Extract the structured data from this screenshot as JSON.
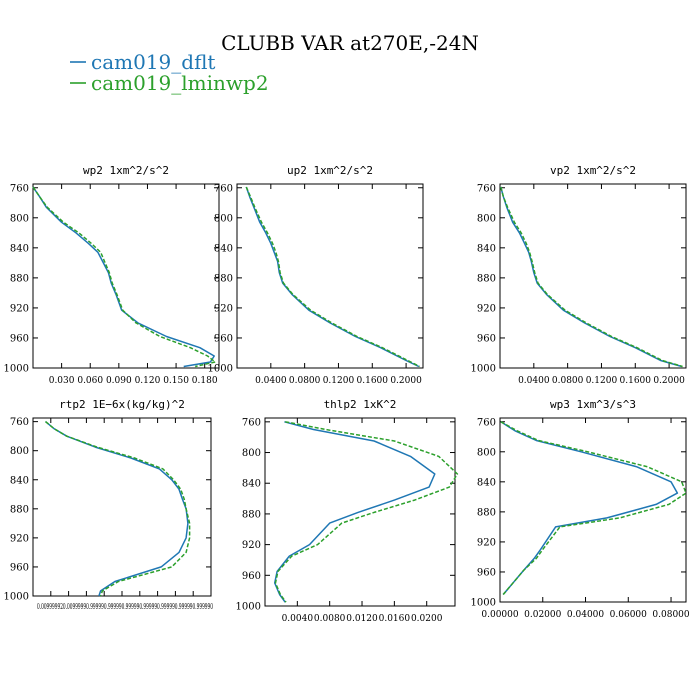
{
  "figure": {
    "title": "CLUBB VAR at270E,-24N",
    "legend": [
      {
        "label": "cam019_dflt",
        "color": "#1f77b4",
        "dash": "solid"
      },
      {
        "label": "cam019_lminwp2",
        "color": "#2ca02c",
        "dash": "dashed"
      }
    ]
  },
  "chart_data": [
    {
      "type": "line",
      "title": "wp2  1xm^2/s^2",
      "ylim": [
        1000,
        755
      ],
      "yticks": [
        760,
        800,
        840,
        880,
        920,
        960,
        1000
      ],
      "xlim": [
        0.0,
        0.195
      ],
      "xticks": [
        0.03,
        0.06,
        0.09,
        0.12,
        0.15,
        0.18
      ],
      "xticklabels": [
        "0.030",
        "0.060",
        "0.090",
        "0.120",
        "0.150",
        "0.180"
      ],
      "series": [
        {
          "name": "cam019_dflt",
          "x": [
            0.0,
            0.007,
            0.014,
            0.03,
            0.045,
            0.058,
            0.068,
            0.073,
            0.079,
            0.082,
            0.087,
            0.093,
            0.11,
            0.14,
            0.175,
            0.19,
            0.186,
            0.158
          ],
          "y": [
            759,
            772,
            786,
            806,
            820,
            834,
            846,
            858,
            873,
            887,
            902,
            923,
            940,
            958,
            973,
            984,
            992,
            998
          ]
        },
        {
          "name": "cam019_lminwp2",
          "x": [
            0.0,
            0.007,
            0.015,
            0.032,
            0.048,
            0.061,
            0.071,
            0.075,
            0.08,
            0.083,
            0.088,
            0.094,
            0.108,
            0.133,
            0.165,
            0.183,
            0.191,
            0.17
          ],
          "y": [
            759,
            772,
            786,
            806,
            820,
            834,
            846,
            858,
            873,
            887,
            902,
            923,
            940,
            958,
            973,
            984,
            992,
            998
          ]
        }
      ]
    },
    {
      "type": "line",
      "title": "up2  1xm^2/s^2",
      "ylim": [
        1000,
        755
      ],
      "yticks": [
        760,
        800,
        840,
        880,
        920,
        960,
        1000
      ],
      "xlim": [
        0.0,
        0.22
      ],
      "xticks": [
        0.04,
        0.08,
        0.12,
        0.16,
        0.2
      ],
      "xticklabels": [
        "0.0400",
        "0.0800",
        "0.1200",
        "0.1600",
        "0.2000"
      ],
      "series": [
        {
          "name": "cam019_dflt",
          "x": [
            0.011,
            0.015,
            0.02,
            0.027,
            0.034,
            0.04,
            0.044,
            0.048,
            0.05,
            0.054,
            0.065,
            0.085,
            0.11,
            0.14,
            0.17,
            0.2,
            0.215
          ],
          "y": [
            759,
            772,
            786,
            806,
            820,
            834,
            846,
            858,
            873,
            887,
            902,
            923,
            940,
            958,
            973,
            990,
            998
          ]
        },
        {
          "name": "cam019_lminwp2",
          "x": [
            0.011,
            0.016,
            0.021,
            0.029,
            0.036,
            0.042,
            0.046,
            0.049,
            0.051,
            0.055,
            0.066,
            0.087,
            0.112,
            0.142,
            0.172,
            0.202,
            0.216
          ],
          "y": [
            759,
            772,
            786,
            806,
            820,
            834,
            846,
            858,
            873,
            887,
            902,
            923,
            940,
            958,
            973,
            990,
            998
          ]
        }
      ]
    },
    {
      "type": "line",
      "title": "vp2  1xm^2/s^2",
      "ylim": [
        1000,
        755
      ],
      "yticks": [
        760,
        800,
        840,
        880,
        920,
        960,
        1000
      ],
      "xlim": [
        0.0,
        0.22
      ],
      "xticks": [
        0.04,
        0.08,
        0.12,
        0.16,
        0.2
      ],
      "xticklabels": [
        "0.0400",
        "0.0800",
        "0.1200",
        "0.1600",
        "0.2000"
      ],
      "series": [
        {
          "name": "cam019_dflt",
          "x": [
            0.001,
            0.004,
            0.008,
            0.015,
            0.023,
            0.029,
            0.034,
            0.037,
            0.04,
            0.044,
            0.055,
            0.075,
            0.1,
            0.13,
            0.16,
            0.19,
            0.215
          ],
          "y": [
            759,
            772,
            786,
            806,
            820,
            834,
            846,
            858,
            873,
            887,
            902,
            923,
            940,
            958,
            973,
            990,
            998
          ]
        },
        {
          "name": "cam019_lminwp2",
          "x": [
            0.001,
            0.004,
            0.009,
            0.017,
            0.025,
            0.031,
            0.035,
            0.038,
            0.041,
            0.045,
            0.056,
            0.077,
            0.102,
            0.132,
            0.162,
            0.192,
            0.216
          ],
          "y": [
            759,
            772,
            786,
            806,
            820,
            834,
            846,
            858,
            873,
            887,
            902,
            923,
            940,
            958,
            973,
            990,
            998
          ]
        }
      ]
    },
    {
      "type": "line",
      "title": "rtp2  1E−6x(kg/kg)^2",
      "ylim": [
        1000,
        755
      ],
      "yticks": [
        760,
        800,
        840,
        880,
        920,
        960,
        1000
      ],
      "xlim": [
        0.0,
        1.0
      ],
      "xticks": [
        0.0,
        0.1,
        0.2,
        0.3,
        0.4,
        0.5,
        0.6,
        0.7,
        0.8,
        0.9,
        1.0
      ],
      "xticklabels": [
        "0.00999990",
        "0.0999990",
        "0.1999990",
        "0.2999990",
        "0.3999990",
        "0.4999990",
        "0.5999990",
        "0.6999990",
        "0.7999990",
        "0.8999990",
        "0.9999990"
      ],
      "xticklabel_text": "0.009999920.00999990.999990.999990.999990.999990.999990.999990.999990",
      "series": [
        {
          "name": "cam019_dflt",
          "x": [
            0.07,
            0.12,
            0.19,
            0.35,
            0.55,
            0.71,
            0.78,
            0.82,
            0.84,
            0.86,
            0.87,
            0.86,
            0.82,
            0.72,
            0.46,
            0.38,
            0.37
          ],
          "y": [
            760,
            770,
            780,
            795,
            810,
            825,
            840,
            853,
            867,
            880,
            900,
            920,
            940,
            960,
            980,
            993,
            1000
          ]
        },
        {
          "name": "cam019_lminwp2",
          "x": [
            0.07,
            0.12,
            0.19,
            0.36,
            0.57,
            0.73,
            0.79,
            0.83,
            0.85,
            0.86,
            0.88,
            0.88,
            0.86,
            0.78,
            0.48,
            0.39,
            0.38
          ],
          "y": [
            760,
            770,
            780,
            795,
            810,
            825,
            840,
            853,
            867,
            880,
            900,
            920,
            940,
            960,
            980,
            993,
            1000
          ]
        }
      ]
    },
    {
      "type": "line",
      "title": "thlp2  1xK^2",
      "ylim": [
        1000,
        755
      ],
      "yticks": [
        760,
        800,
        840,
        880,
        920,
        960,
        1000
      ],
      "xlim": [
        0.0,
        0.0235
      ],
      "xticks": [
        0.004,
        0.008,
        0.012,
        0.016,
        0.02
      ],
      "xticklabels": [
        "0.0040",
        "0.0080",
        "0.0120",
        "0.0160",
        "0.0200"
      ],
      "series": [
        {
          "name": "cam019_dflt",
          "x": [
            0.0024,
            0.006,
            0.0135,
            0.018,
            0.021,
            0.0203,
            0.016,
            0.0115,
            0.008,
            0.0055,
            0.003,
            0.0015,
            0.0012,
            0.0018,
            0.0025
          ],
          "y": [
            760,
            770,
            785,
            805,
            828,
            845,
            862,
            878,
            892,
            920,
            935,
            955,
            970,
            985,
            995
          ]
        },
        {
          "name": "cam019_lminwp2",
          "x": [
            0.0025,
            0.0075,
            0.016,
            0.0215,
            0.0238,
            0.0228,
            0.0185,
            0.0135,
            0.0095,
            0.0065,
            0.0033,
            0.0016,
            0.0013,
            0.0019,
            0.0026
          ],
          "y": [
            760,
            770,
            785,
            805,
            828,
            845,
            862,
            878,
            892,
            920,
            935,
            955,
            970,
            985,
            995
          ]
        }
      ]
    },
    {
      "type": "line",
      "title": "wp3  1xm^3/s^3",
      "ylim": [
        1000,
        755
      ],
      "yticks": [
        760,
        800,
        840,
        880,
        920,
        960,
        1000
      ],
      "xlim": [
        0.0,
        0.087
      ],
      "xticks": [
        0.0,
        0.02,
        0.04,
        0.06,
        0.08
      ],
      "xticklabels": [
        "0.00000",
        "0.02000",
        "0.04000",
        "0.06000",
        "0.08000"
      ],
      "series": [
        {
          "name": "cam019_dflt",
          "x": [
            0.0004,
            0.007,
            0.017,
            0.038,
            0.064,
            0.08,
            0.083,
            0.073,
            0.05,
            0.026,
            0.019,
            0.016,
            0.011,
            0.006,
            0.0015
          ],
          "y": [
            760,
            772,
            785,
            800,
            820,
            840,
            855,
            870,
            888,
            900,
            930,
            942,
            958,
            975,
            990
          ]
        },
        {
          "name": "cam019_lminwp2",
          "x": [
            0.0004,
            0.008,
            0.018,
            0.041,
            0.069,
            0.085,
            0.087,
            0.079,
            0.056,
            0.028,
            0.02,
            0.017,
            0.011,
            0.006,
            0.0015
          ],
          "y": [
            760,
            772,
            785,
            800,
            820,
            840,
            855,
            870,
            888,
            900,
            930,
            942,
            958,
            975,
            990
          ]
        }
      ]
    }
  ]
}
